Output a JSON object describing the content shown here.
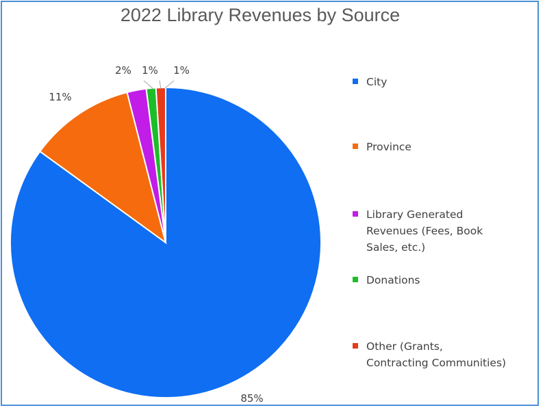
{
  "chart_data": {
    "type": "pie",
    "title": "2022 Library Revenues by Source",
    "slices": [
      {
        "label": "City",
        "value": 85,
        "display": "85%",
        "color": "#0f6ef2"
      },
      {
        "label": "Province",
        "value": 11,
        "display": "11%",
        "color": "#f56b0d"
      },
      {
        "label": "Library Generated Revenues (Fees, Book Sales, etc.)",
        "value": 2,
        "display": "2%",
        "color": "#c21de8"
      },
      {
        "label": "Donations",
        "value": 1,
        "display": "1%",
        "color": "#1dbd2a"
      },
      {
        "label": "Other (Grants, Contracting Communities)",
        "value": 1,
        "display": "1%",
        "color": "#e63a1a"
      }
    ],
    "legend": {
      "position": "right",
      "items": [
        {
          "text": "City"
        },
        {
          "text": "Province"
        },
        {
          "text": "Library Generated\nRevenues (Fees, Book\nSales, etc.)"
        },
        {
          "text": "Donations"
        },
        {
          "text": "Other (Grants,\nContracting Communities)"
        }
      ]
    }
  }
}
